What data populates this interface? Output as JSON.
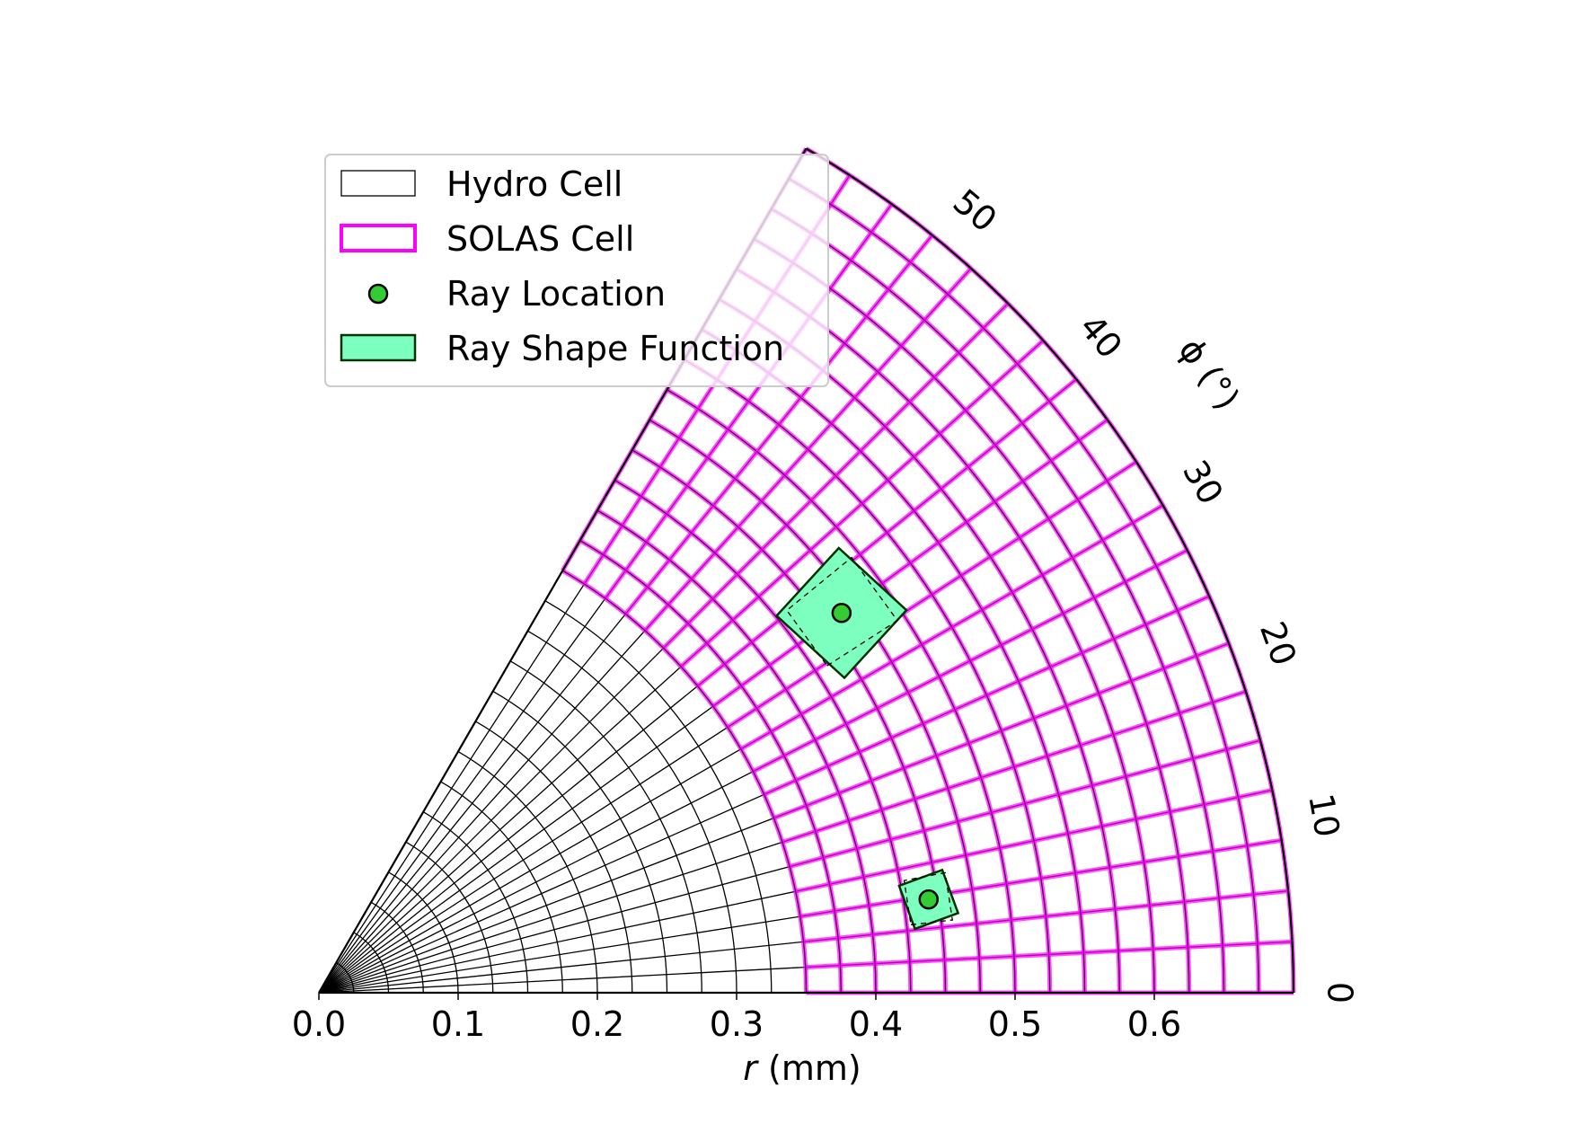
{
  "chart_data": {
    "type": "polar_mesh",
    "r_axis": {
      "label_var": "r",
      "label_unit": "(mm)",
      "ticks": [
        0.0,
        0.1,
        0.2,
        0.3,
        0.4,
        0.5,
        0.6
      ],
      "tick_labels": [
        "0.0",
        "0.1",
        "0.2",
        "0.3",
        "0.4",
        "0.5",
        "0.6"
      ],
      "range": [
        0,
        0.7
      ]
    },
    "phi_axis": {
      "label": "ϕ (°)",
      "ticks": [
        0,
        10,
        20,
        30,
        40,
        50
      ],
      "tick_labels": [
        "0",
        "10",
        "20",
        "30",
        "40",
        "50"
      ],
      "range": [
        0,
        60
      ]
    },
    "hydro_cells": {
      "r_edges": [
        0,
        0.025,
        0.05,
        0.075,
        0.1,
        0.125,
        0.15,
        0.175,
        0.2,
        0.225,
        0.25,
        0.275,
        0.3,
        0.325,
        0.35,
        0.375,
        0.4,
        0.425,
        0.45,
        0.475,
        0.5,
        0.525,
        0.55,
        0.575,
        0.6,
        0.625,
        0.65,
        0.675,
        0.7
      ],
      "phi_edges": [
        0,
        3,
        6,
        9,
        12,
        15,
        18,
        21,
        24,
        27,
        30,
        33,
        36,
        39,
        42,
        45,
        48,
        51,
        54,
        57,
        60
      ],
      "color": "#000000"
    },
    "solas_cells": {
      "r_edges": [
        0.35,
        0.375,
        0.4,
        0.425,
        0.45,
        0.475,
        0.5,
        0.525,
        0.55,
        0.575,
        0.6,
        0.625,
        0.65,
        0.675,
        0.7
      ],
      "phi_edges": [
        0,
        3,
        6,
        9,
        12,
        15,
        18,
        21,
        24,
        27,
        30,
        33,
        36,
        39,
        42,
        45,
        48,
        51,
        54,
        57,
        60
      ],
      "color": "#ff00ff"
    },
    "rays": [
      {
        "r": 0.443,
        "phi": 8.7,
        "size_r": 0.03,
        "size_phi": 4.3
      },
      {
        "r": 0.464,
        "phi": 36.0,
        "size_r": 0.06,
        "size_phi": 6.5
      }
    ],
    "legend": {
      "position": "upper-left",
      "entries": [
        {
          "label": "Hydro Cell",
          "style": "hydro"
        },
        {
          "label": "SOLAS Cell",
          "style": "solas"
        },
        {
          "label": "Ray Location",
          "style": "point"
        },
        {
          "label": "Ray Shape Function",
          "style": "shape"
        }
      ]
    },
    "colors": {
      "ray_point": "#33cc33",
      "ray_shape_fill": "#7dffc0",
      "ray_shape_edge": "#003300"
    }
  }
}
